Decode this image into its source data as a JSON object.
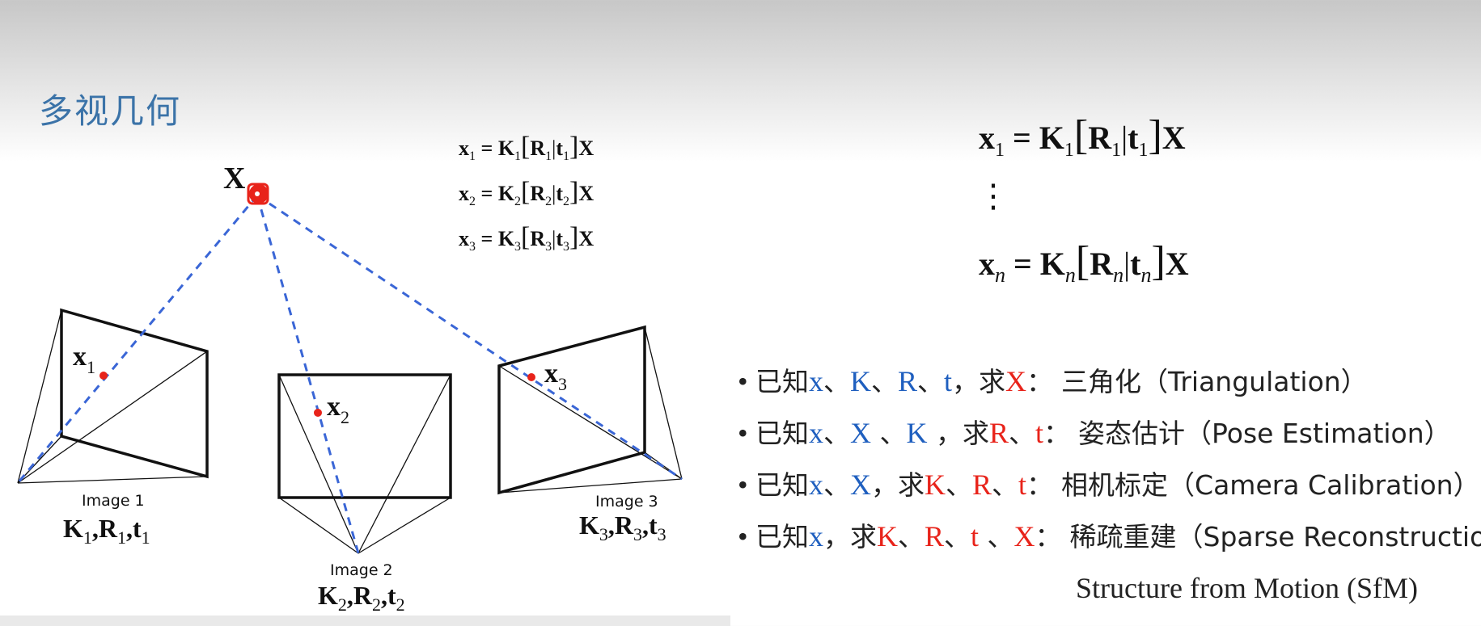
{
  "title": "多视几何",
  "diagram": {
    "point_label": "X",
    "image_labels": [
      "Image 1",
      "Image 2",
      "Image 3"
    ],
    "proj_labels": [
      "x",
      "x",
      "x"
    ],
    "proj_subs": [
      "1",
      "2",
      "3"
    ],
    "cam_params": [
      {
        "K": "K",
        "Ksub": "1",
        "R": "R",
        "Rsub": "1",
        "t": "t",
        "tsub": "1"
      },
      {
        "K": "K",
        "Ksub": "2",
        "R": "R",
        "Rsub": "2",
        "t": "t",
        "tsub": "2"
      },
      {
        "K": "K",
        "Ksub": "3",
        "R": "R",
        "Rsub": "3",
        "t": "t",
        "tsub": "3"
      }
    ]
  },
  "small_equations": [
    "1",
    "2",
    "3"
  ],
  "large_equations": {
    "first_sub": "1",
    "last_sub": "n",
    "ellipsis": "⋮"
  },
  "bullets": [
    {
      "prefix": "已知",
      "knowns": [
        {
          "t": "x",
          "c": "blue"
        },
        {
          "t": "、",
          "c": "dim"
        },
        {
          "t": "K",
          "c": "blue"
        },
        {
          "t": "、",
          "c": "dim"
        },
        {
          "t": "R",
          "c": "blue"
        },
        {
          "t": "、",
          "c": "dim"
        },
        {
          "t": "t",
          "c": "blue"
        }
      ],
      "seek": "，求",
      "unknowns": [
        {
          "t": "X",
          "c": "red"
        }
      ],
      "colon": "：",
      "task": "三角化（Triangulation）"
    },
    {
      "prefix": "已知",
      "knowns": [
        {
          "t": "x",
          "c": "blue"
        },
        {
          "t": "、",
          "c": "dim"
        },
        {
          "t": "X",
          "c": "blue"
        },
        {
          "t": " 、",
          "c": "dim"
        },
        {
          "t": "K",
          "c": "blue"
        }
      ],
      "seek": " ，求",
      "unknowns": [
        {
          "t": "R",
          "c": "red"
        },
        {
          "t": "、",
          "c": "dim"
        },
        {
          "t": "t",
          "c": "red"
        }
      ],
      "colon": "：",
      "task": "姿态估计（Pose Estimation）"
    },
    {
      "prefix": "已知",
      "knowns": [
        {
          "t": "x",
          "c": "blue"
        },
        {
          "t": "、",
          "c": "dim"
        },
        {
          "t": "X",
          "c": "blue"
        }
      ],
      "seek": "，求",
      "unknowns": [
        {
          "t": "K",
          "c": "red"
        },
        {
          "t": "、",
          "c": "dim"
        },
        {
          "t": "R",
          "c": "red"
        },
        {
          "t": "、",
          "c": "dim"
        },
        {
          "t": "t",
          "c": "red"
        }
      ],
      "colon": "：",
      "task": "相机标定（Camera Calibration）"
    },
    {
      "prefix": "已知",
      "knowns": [
        {
          "t": "x",
          "c": "blue"
        }
      ],
      "seek": "，求",
      "unknowns": [
        {
          "t": "K",
          "c": "red"
        },
        {
          "t": "、",
          "c": "dim"
        },
        {
          "t": "R",
          "c": "red"
        },
        {
          "t": "、",
          "c": "dim"
        },
        {
          "t": "t",
          "c": "red"
        },
        {
          "t": " 、",
          "c": "dim"
        },
        {
          "t": "X",
          "c": "red"
        }
      ],
      "colon": "：",
      "task": "稀疏重建（Sparse Reconstruction）"
    }
  ],
  "sfm_line": "Structure from Motion (SfM)",
  "colors": {
    "blue": "#1f5fbf",
    "red": "#e8231a",
    "dash": "#3a66d6",
    "title": "#3b73a8"
  }
}
